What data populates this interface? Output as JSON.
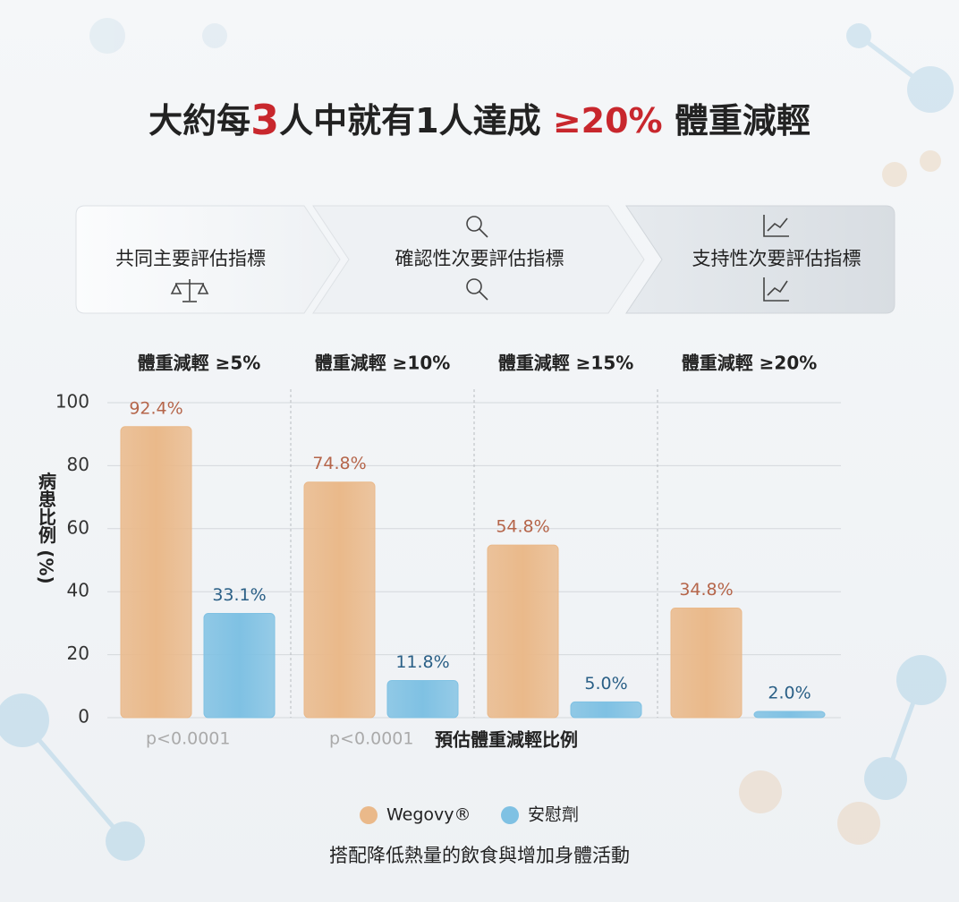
{
  "header": {
    "title_parts": [
      "大約每",
      "3",
      "人中就有1人達成 ",
      "≥20%",
      " 體重減輕"
    ]
  },
  "steps": [
    "共同主要評估指標",
    "確認性次要評估指標",
    "支持性次要評估指標"
  ],
  "chart_data": {
    "type": "bar",
    "categories": [
      "體重減輕 ≥5%",
      "體重減輕 ≥10%",
      "體重減輕 ≥15%",
      "體重減輕 ≥20%"
    ],
    "series": [
      {
        "name": "Wegovy®",
        "color": "#eab98a",
        "values": [
          92.4,
          74.8,
          54.8,
          34.8
        ],
        "value_labels": [
          "92.4%",
          "74.8%",
          "54.8%",
          "34.8%"
        ]
      },
      {
        "name": "安慰劑",
        "color": "#7fc1e3",
        "values": [
          33.1,
          11.8,
          5.0,
          2.0
        ],
        "value_labels": [
          "33.1%",
          "11.8%",
          "5.0%",
          "2.0%"
        ]
      }
    ],
    "ylim": [
      0,
      100
    ],
    "yticks": [
      0,
      20,
      40,
      60,
      80,
      100
    ],
    "grid": true,
    "y_label": "病患比例 (%)",
    "x_label": "預估體重減輕比例",
    "p_values": [
      "p<0.0001",
      "p<0.0001"
    ],
    "footnote": "搭配降低熱量的飲食與增加身體活動"
  }
}
